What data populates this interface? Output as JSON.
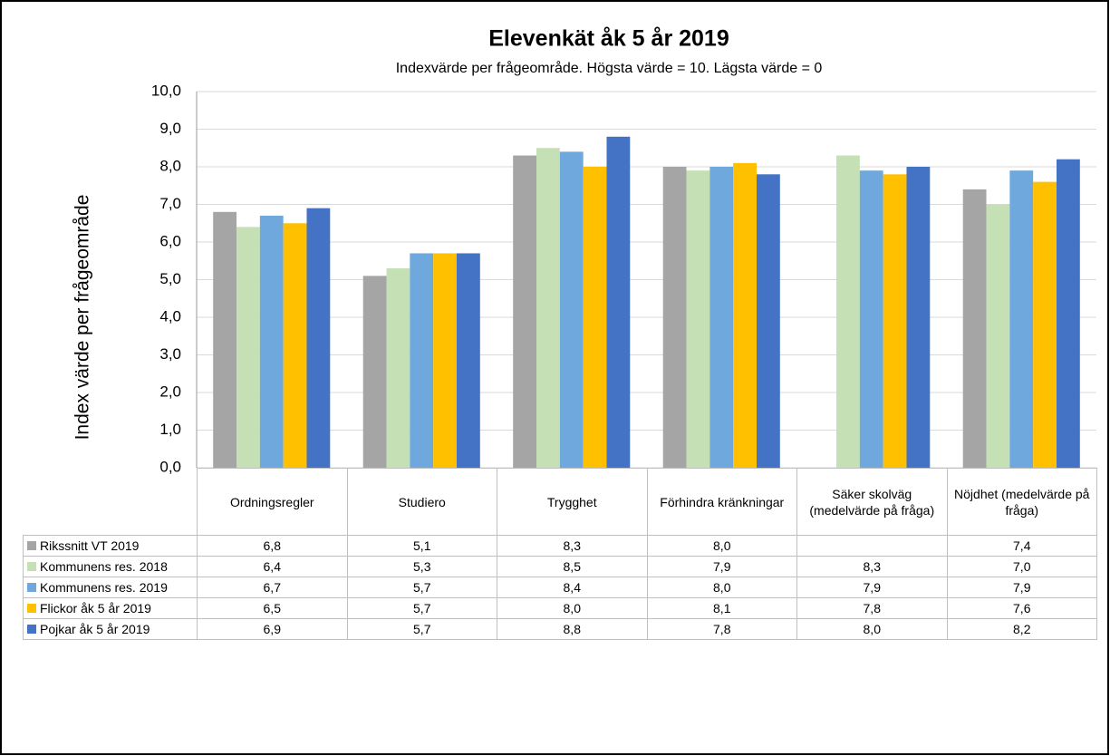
{
  "chart_data": {
    "type": "bar",
    "title": "Elevenkät åk 5 år 2019",
    "subtitle": "Indexvärde per frågeområde. Högsta värde = 10. Lägsta värde = 0",
    "y_label": "Index värde per frågeområde",
    "categories": [
      "Ordningsregler",
      "Studiero",
      "Trygghet",
      "Förhindra kränkningar",
      "Säker skolväg (medelvärde på fråga)",
      "Nöjdhet (medelvärde på fråga)"
    ],
    "series": [
      {
        "name": "Rikssnitt VT 2019",
        "color": "#a5a5a5",
        "values": [
          6.8,
          5.1,
          8.3,
          8.0,
          null,
          7.4
        ],
        "value_labels": [
          "6,8",
          "5,1",
          "8,3",
          "8,0",
          null,
          "7,4"
        ]
      },
      {
        "name": "Kommunens res. 2018",
        "color": "#c5e0b4",
        "values": [
          6.4,
          5.3,
          8.5,
          7.9,
          8.3,
          7.0
        ],
        "value_labels": [
          "6,4",
          "5,3",
          "8,5",
          "7,9",
          "8,3",
          "7,0"
        ]
      },
      {
        "name": "Kommunens res. 2019",
        "color": "#6fa8dc",
        "values": [
          6.7,
          5.7,
          8.4,
          8.0,
          7.9,
          7.9
        ],
        "value_labels": [
          "6,7",
          "5,7",
          "8,4",
          "8,0",
          "7,9",
          "7,9"
        ]
      },
      {
        "name": "Flickor åk 5 år 2019",
        "color": "#ffc000",
        "values": [
          6.5,
          5.7,
          8.0,
          8.1,
          7.8,
          7.6
        ],
        "value_labels": [
          "6,5",
          "5,7",
          "8,0",
          "8,1",
          "7,8",
          "7,6"
        ]
      },
      {
        "name": "Pojkar åk 5 år 2019",
        "color": "#4472c4",
        "values": [
          6.9,
          5.7,
          8.8,
          7.8,
          8.0,
          8.2
        ],
        "value_labels": [
          "6,9",
          "5,7",
          "8,8",
          "7,8",
          "8,0",
          "8,2"
        ]
      }
    ],
    "ylim": [
      0,
      10
    ],
    "yticks": [
      {
        "value": 0,
        "label": "0,0"
      },
      {
        "value": 1,
        "label": "1,0"
      },
      {
        "value": 2,
        "label": "2,0"
      },
      {
        "value": 3,
        "label": "3,0"
      },
      {
        "value": 4,
        "label": "4,0"
      },
      {
        "value": 5,
        "label": "5,0"
      },
      {
        "value": 6,
        "label": "6,0"
      },
      {
        "value": 7,
        "label": "7,0"
      },
      {
        "value": 8,
        "label": "8,0"
      },
      {
        "value": 9,
        "label": "9,0"
      },
      {
        "value": 10,
        "label": "10,0"
      }
    ],
    "grid": true
  }
}
